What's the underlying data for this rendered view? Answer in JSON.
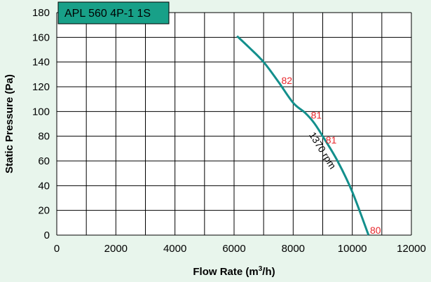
{
  "chart_data": {
    "type": "line",
    "title": "APL 560 4P-1 1S",
    "xlabel": "Flow Rate (m",
    "xlabel_sup": "3",
    "xlabel_end": "/h)",
    "ylabel": "Static Pressure (Pa)",
    "xlim": [
      0,
      12000
    ],
    "ylim": [
      0,
      180
    ],
    "x_ticks": [
      0,
      2000,
      4000,
      6000,
      8000,
      10000,
      12000
    ],
    "y_ticks": [
      0,
      20,
      40,
      60,
      80,
      100,
      120,
      140,
      160,
      180
    ],
    "grid": true,
    "series": [
      {
        "name": "1370 rpm",
        "color": "#138f8c",
        "points": [
          [
            6100,
            161
          ],
          [
            6500,
            152
          ],
          [
            7000,
            140
          ],
          [
            7500,
            124
          ],
          [
            8000,
            107
          ],
          [
            8400,
            99
          ],
          [
            8700,
            91
          ],
          [
            9000,
            80
          ],
          [
            9500,
            60
          ],
          [
            10000,
            35
          ],
          [
            10550,
            0
          ]
        ]
      }
    ],
    "point_labels": [
      {
        "x": 7600,
        "y": 125,
        "text": "82"
      },
      {
        "x": 8600,
        "y": 97,
        "text": "81"
      },
      {
        "x": 9100,
        "y": 77,
        "text": "81"
      },
      {
        "x": 10600,
        "y": 4,
        "text": "80"
      }
    ]
  },
  "colors": {
    "background": "#e8f5ec",
    "title_box": "#18a088",
    "curve": "#138f8c",
    "point_label": "#e8262b"
  }
}
